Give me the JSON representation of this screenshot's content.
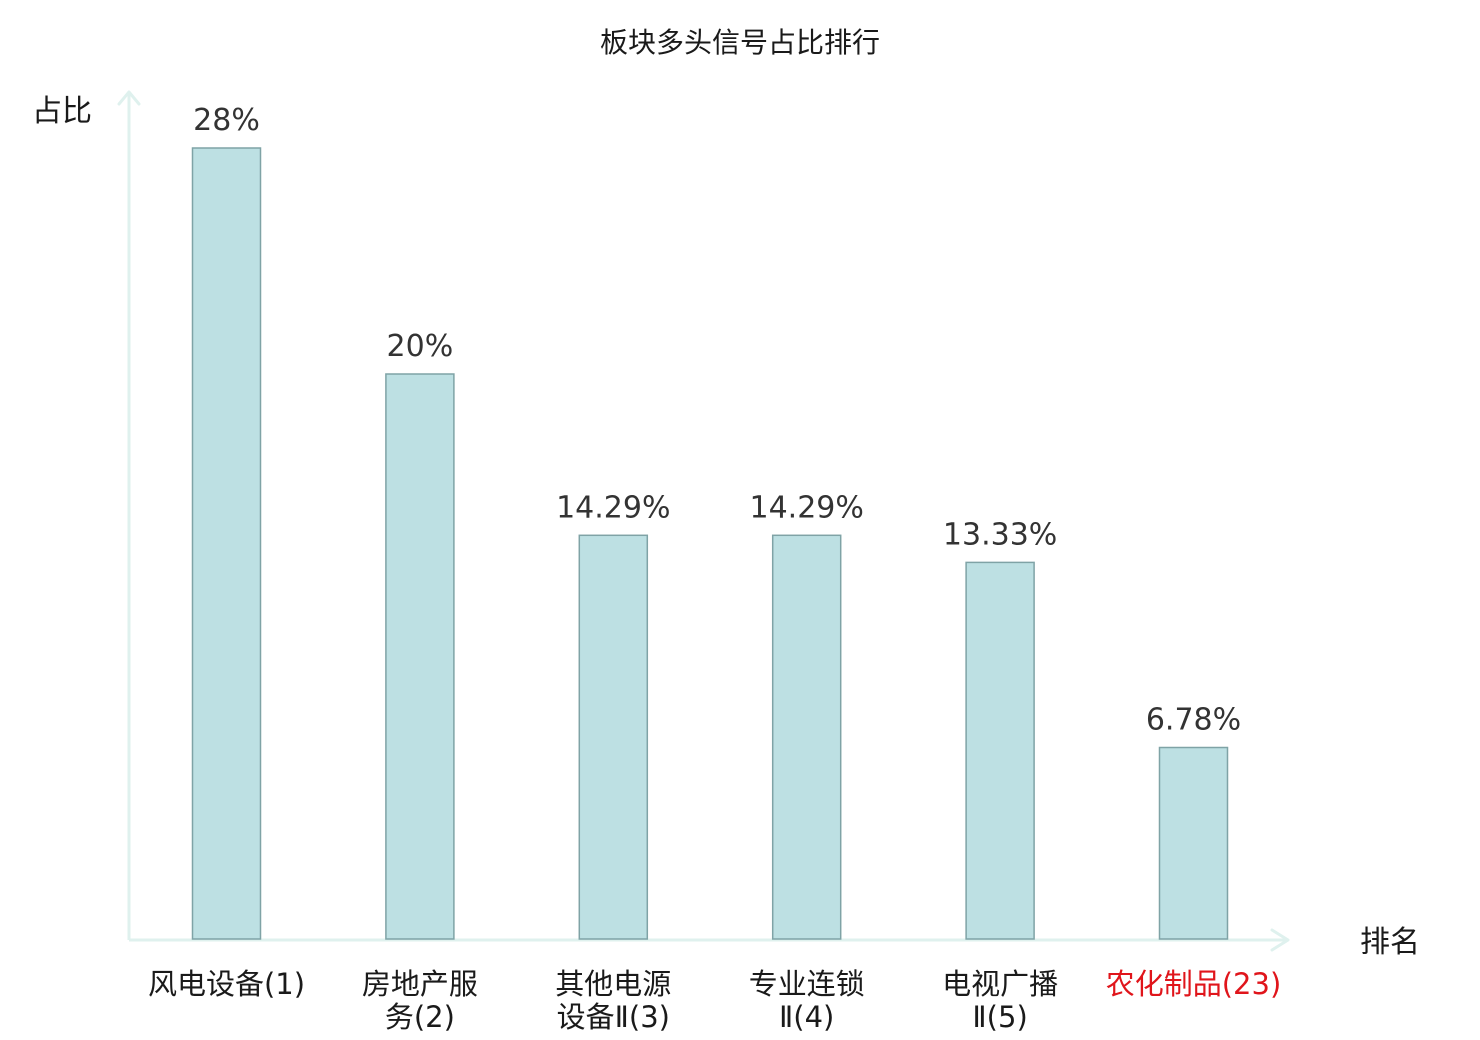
{
  "chart_data": {
    "type": "bar",
    "title": "板块多头信号占比排行",
    "ylabel": "占比",
    "xlabel": "排名",
    "ylim": [
      0,
      28
    ],
    "grid": false,
    "legend": "none",
    "categories": [
      {
        "lines": [
          "风电设备(1)"
        ],
        "highlight": false
      },
      {
        "lines": [
          "房地产服",
          "务(2)"
        ],
        "highlight": false
      },
      {
        "lines": [
          "其他电源",
          "设备Ⅱ(3)"
        ],
        "highlight": false
      },
      {
        "lines": [
          "专业连锁",
          "Ⅱ(4)"
        ],
        "highlight": false
      },
      {
        "lines": [
          "电视广播",
          "Ⅱ(5)"
        ],
        "highlight": false
      },
      {
        "lines": [
          "农化制品(23)"
        ],
        "highlight": true
      }
    ],
    "values": [
      28,
      20,
      14.29,
      14.29,
      13.33,
      6.78
    ],
    "value_labels": [
      "28%",
      "20%",
      "14.29%",
      "14.29%",
      "13.33%",
      "6.78%"
    ],
    "colors": {
      "bar_fill": "#bde0e3",
      "bar_stroke": "#7fa3a6",
      "axis": "#dff1ee",
      "text": "#1a1a1a",
      "value_text": "#333333",
      "highlight_text": "#e0151b"
    }
  }
}
